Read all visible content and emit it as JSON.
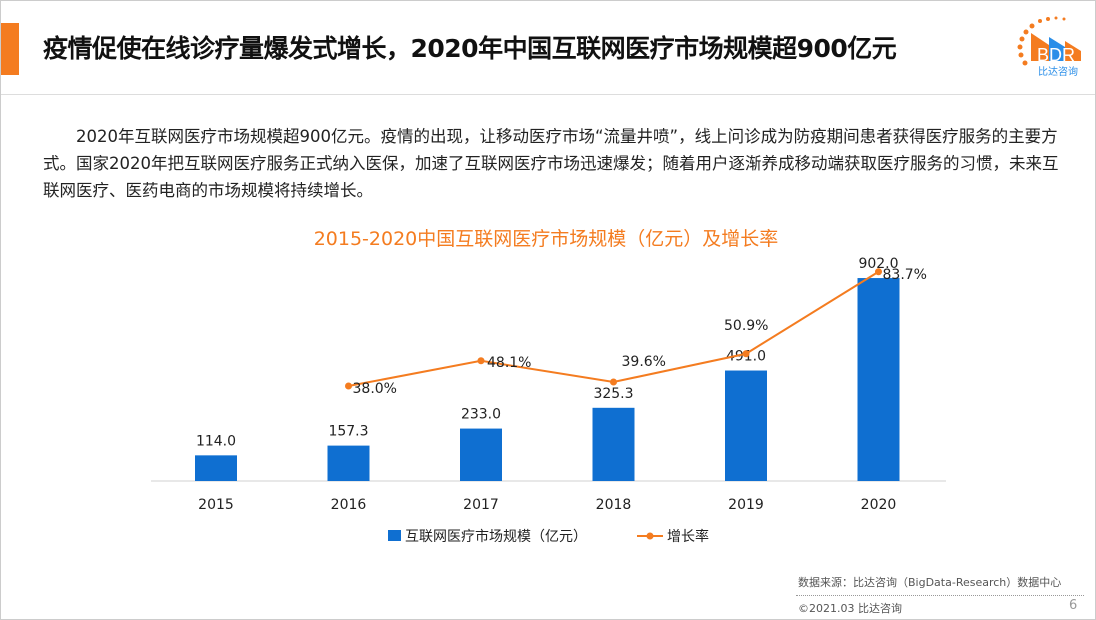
{
  "header": {
    "title": "疫情促使在线诊疗量爆发式增长，2020年中国互联网医疗市场规模超900亿元",
    "logo_text": "BDR",
    "logo_subtext": "比达咨询"
  },
  "paragraph": "2020年互联网医疗市场规模超900亿元。疫情的出现，让移动医疗市场“流量井喷”，线上问诊成为防疫期间患者获得医疗服务的主要方式。国家2020年把互联网医疗服务正式纳入医保，加速了互联网医疗市场迅速爆发；随着用户逐渐养成移动端获取医疗服务的习惯，未来互联网医疗、医药电商的市场规模将持续增长。",
  "chart_data": {
    "type": "bar+line",
    "title": "2015-2020中国互联网医疗市场规模（亿元）及增长率",
    "categories": [
      "2015",
      "2016",
      "2017",
      "2018",
      "2019",
      "2020"
    ],
    "series": [
      {
        "name": "互联网医疗市场规模（亿元）",
        "type": "bar",
        "values": [
          114.0,
          157.3,
          233.0,
          325.3,
          491.0,
          902.0
        ],
        "labels": [
          "114.0",
          "157.3",
          "233.0",
          "325.3",
          "491.0",
          "902.0"
        ],
        "color": "#0f6fd1"
      },
      {
        "name": "增长率",
        "type": "line",
        "values": [
          null,
          38.0,
          48.1,
          39.6,
          50.9,
          83.7
        ],
        "labels": [
          "",
          "38.0%",
          "48.1%",
          "39.6%",
          "50.9%",
          "83.7%"
        ],
        "color": "#f47c20"
      }
    ],
    "legend": "bottom",
    "grid": false,
    "title_color": "#f47c20"
  },
  "footer": {
    "source": "数据来源：比达咨询（BigData-Research）数据中心",
    "copyright": "©2021.03 比达咨询",
    "page": "6"
  }
}
